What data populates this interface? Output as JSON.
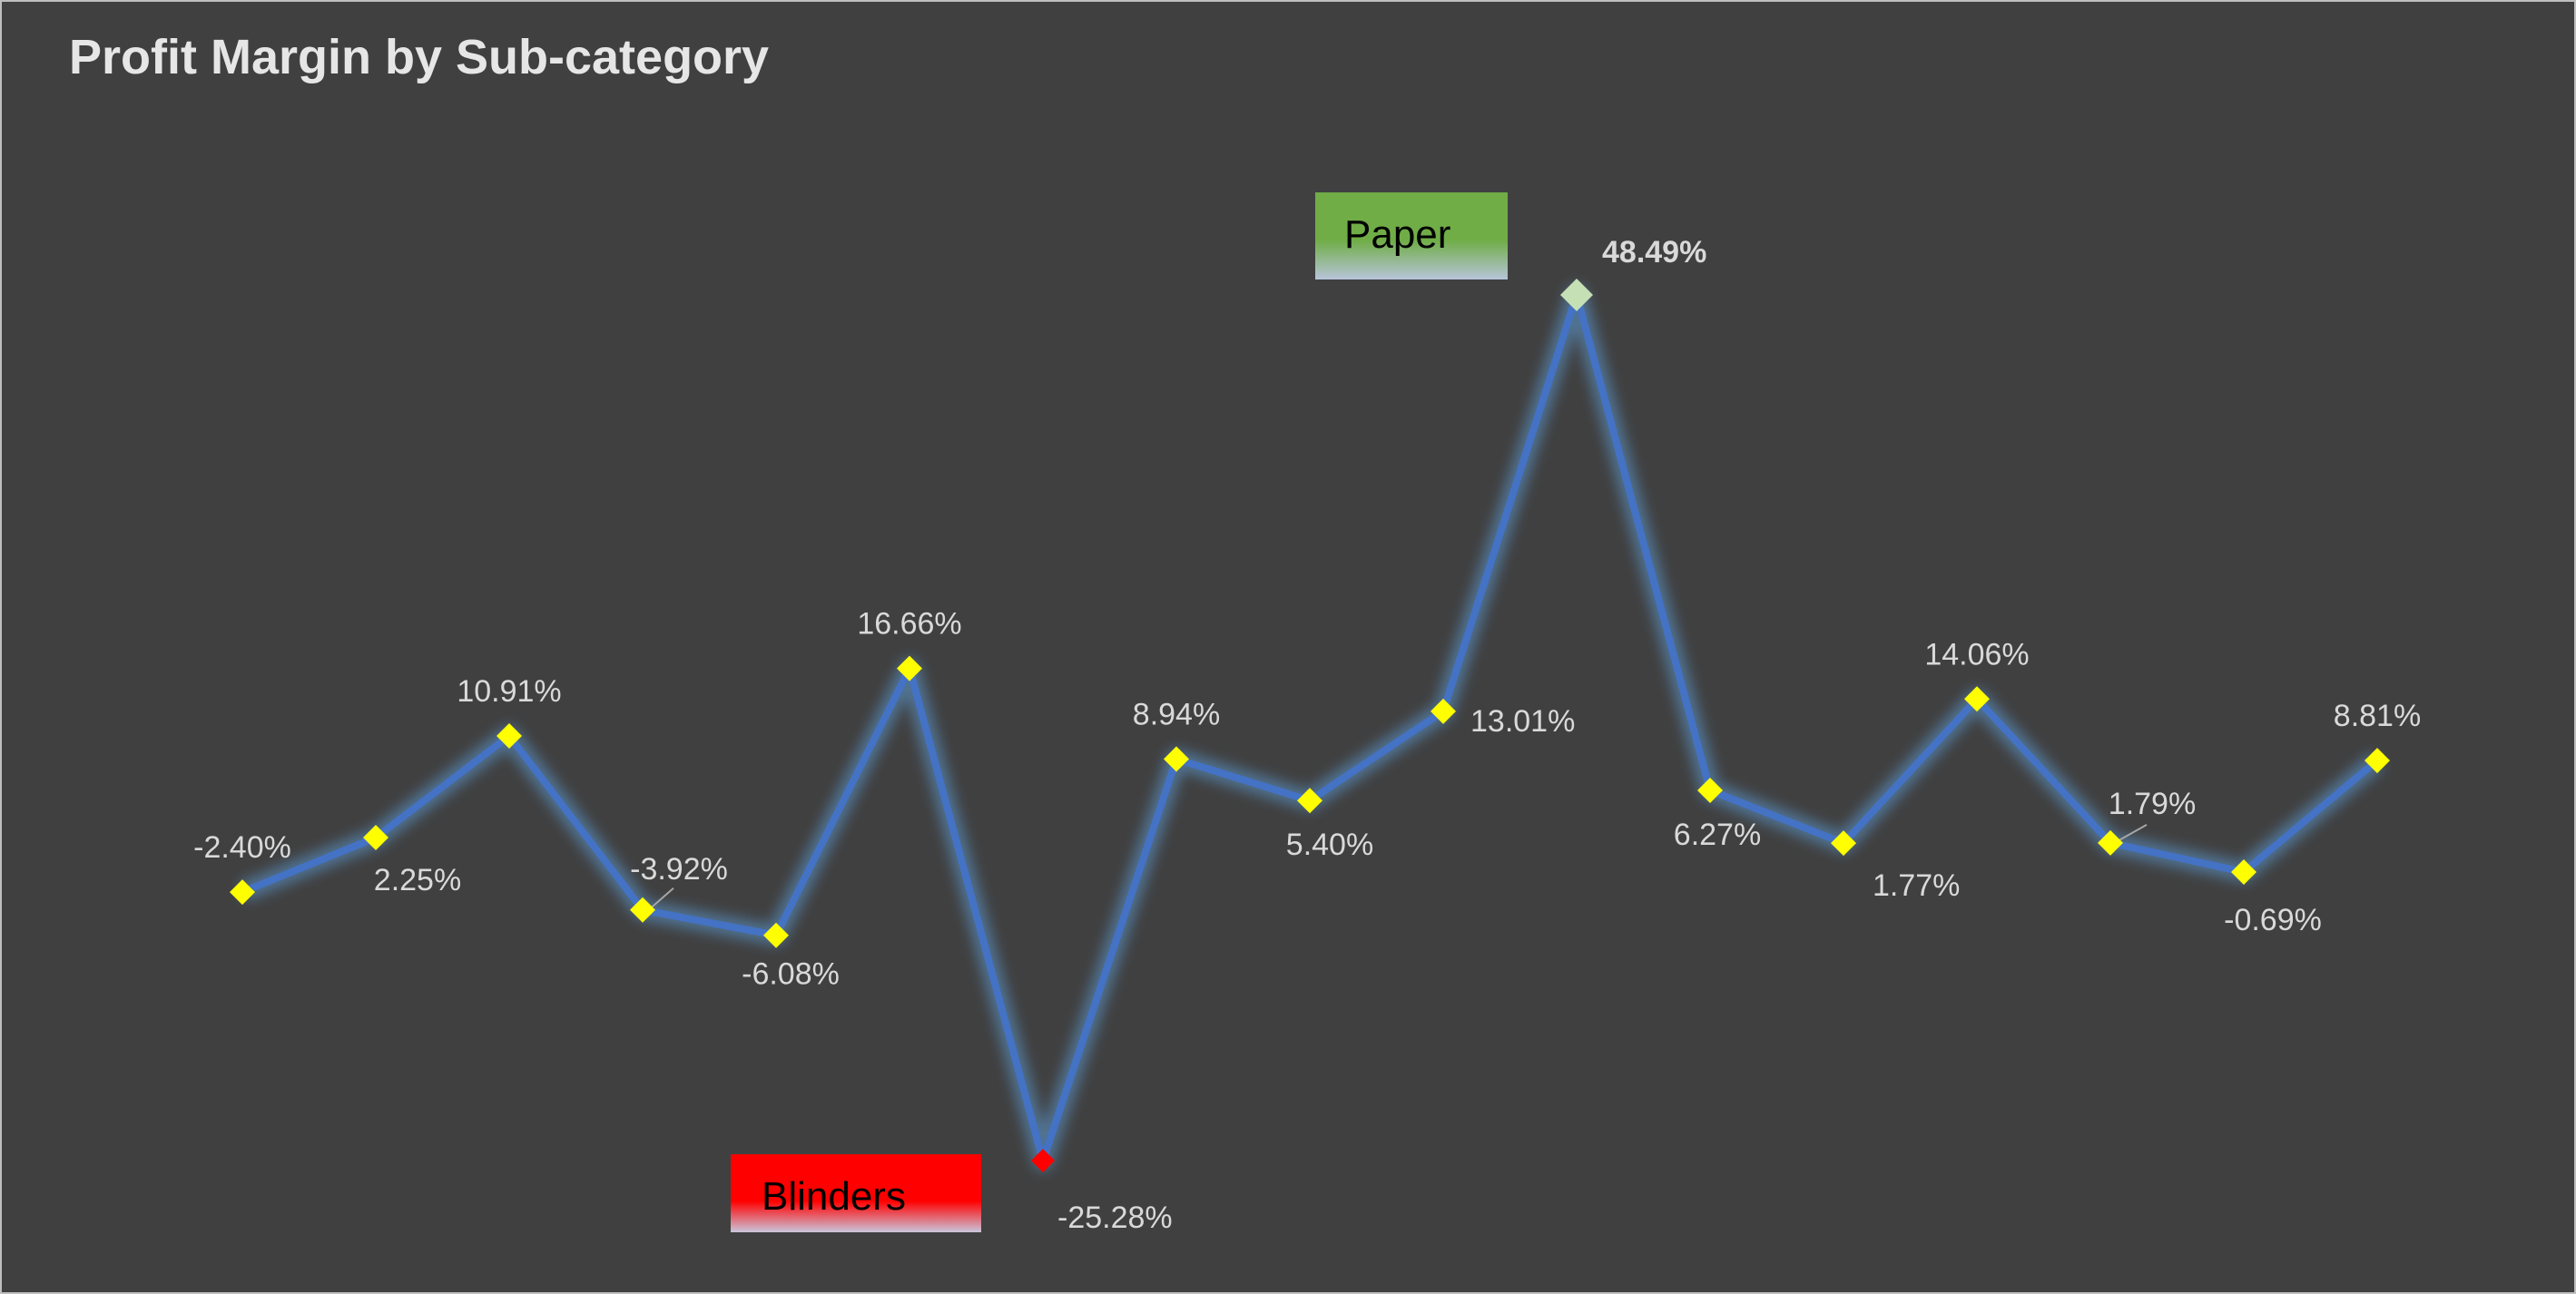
{
  "chart_data": {
    "type": "line",
    "title": "Profit Margin by Sub-category",
    "xlabel": "",
    "ylabel": "",
    "ylim": [
      -25.28,
      48.49
    ],
    "grid": false,
    "legend": "none",
    "series": [
      {
        "values": [
          -2.4,
          2.25,
          10.91,
          -3.92,
          -6.08,
          16.66,
          -25.28,
          8.94,
          5.4,
          13.01,
          48.49,
          6.27,
          1.77,
          14.06,
          1.79,
          -0.69,
          8.81
        ],
        "labels": [
          "-2.40%",
          "2.25%",
          "10.91%",
          "-3.92%",
          "-6.08%",
          "16.66%",
          "-25.28%",
          "8.94%",
          "5.40%",
          "13.01%",
          "48.49%",
          "6.27%",
          "1.77%",
          "14.06%",
          "1.79%",
          "-0.69%",
          "8.81%"
        ]
      }
    ],
    "highlights": {
      "max": {
        "index": 10,
        "category": "Paper",
        "label": "48.49%"
      },
      "min": {
        "index": 6,
        "category": "Blinders",
        "label": "-25.28%"
      }
    },
    "colors": {
      "background": "#404040",
      "line": "#4472c4",
      "glow": "#5b9bd5",
      "marker": "#ffff00",
      "max_marker": "#c5e0b4",
      "min_marker": "#ff0000",
      "max_callout": "#70ad47",
      "min_callout": "#ff0000",
      "label_text": "#d9d9d9",
      "title_text": "#e6e6e6"
    }
  }
}
